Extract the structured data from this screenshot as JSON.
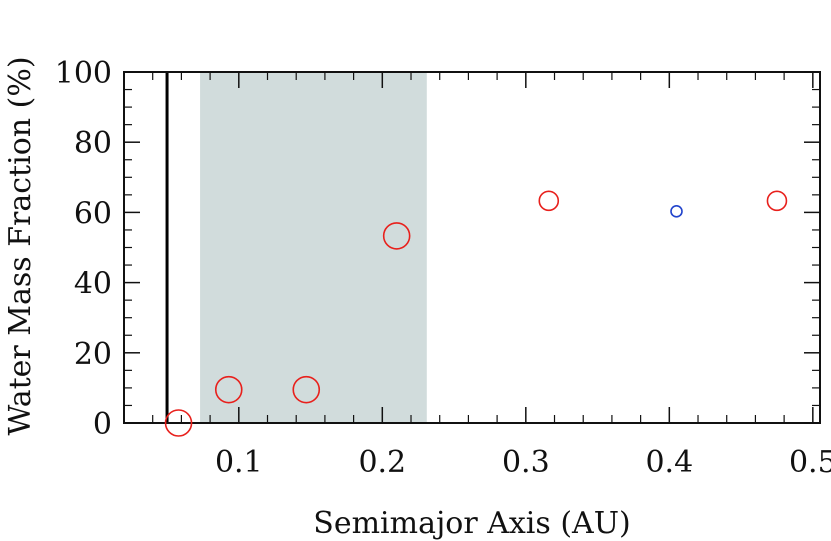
{
  "chart_data": {
    "type": "scatter",
    "title": "",
    "xlabel": "Semimajor Axis (AU)",
    "ylabel": "Water Mass Fraction (%)",
    "xlim": [
      0.02,
      0.505
    ],
    "ylim": [
      0,
      100
    ],
    "x_ticks": [
      0.1,
      0.2,
      0.3,
      0.4,
      0.5
    ],
    "x_tick_labels": [
      "0.1",
      "0.2",
      "0.3",
      "0.4",
      "0.5"
    ],
    "y_ticks": [
      0,
      20,
      40,
      60,
      80,
      100
    ],
    "y_tick_labels": [
      "0",
      "20",
      "40",
      "60",
      "80",
      "100"
    ],
    "grid": false,
    "shaded_region": {
      "x_start": 0.073,
      "x_end": 0.231,
      "color": "#d1dcdc"
    },
    "vertical_line": {
      "x": 0.05,
      "color": "#000000"
    },
    "points": [
      {
        "x": 0.058,
        "y": 0,
        "size": "large",
        "color": "#e8201c"
      },
      {
        "x": 0.093,
        "y": 9.5,
        "size": "large",
        "color": "#e8201c"
      },
      {
        "x": 0.147,
        "y": 9.5,
        "size": "large",
        "color": "#e8201c"
      },
      {
        "x": 0.21,
        "y": 53.3,
        "size": "large",
        "color": "#e8201c"
      },
      {
        "x": 0.316,
        "y": 63.3,
        "size": "medium",
        "color": "#e8201c"
      },
      {
        "x": 0.405,
        "y": 60.3,
        "size": "small",
        "color": "#2244cc"
      },
      {
        "x": 0.475,
        "y": 63.3,
        "size": "medium",
        "color": "#e8201c"
      }
    ]
  }
}
